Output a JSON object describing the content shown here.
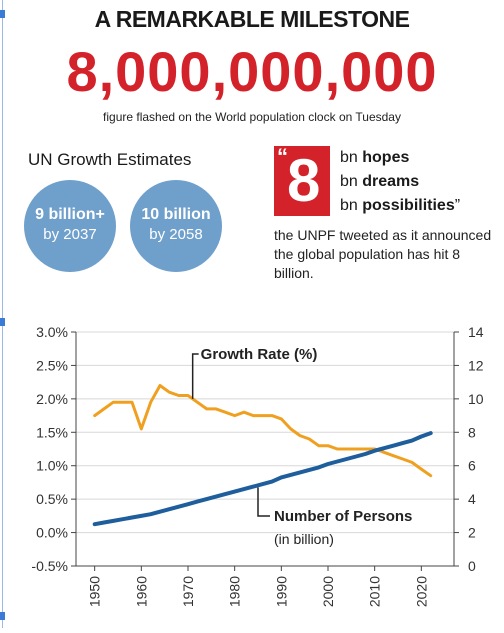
{
  "header": {
    "headline": "A REMARKABLE MILESTONE",
    "big_number": "8,000,000,000",
    "caption": "figure flashed on the World population clock on Tuesday"
  },
  "estimates": {
    "title": "UN Growth Estimates",
    "bubbles": [
      {
        "value": "9 billion+",
        "year": "by 2037"
      },
      {
        "value": "10 billion",
        "year": "by 2058"
      }
    ]
  },
  "quote": {
    "open_mark": "“",
    "number": "8",
    "lines": [
      {
        "prefix": "bn ",
        "word": "hopes",
        "suffix": ""
      },
      {
        "prefix": "bn ",
        "word": "dreams",
        "suffix": ""
      },
      {
        "prefix": "bn ",
        "word": "possibilities",
        "suffix": "”"
      }
    ],
    "attribution": "the UNPF tweeted as it announced the global population has hit 8 billion."
  },
  "colors": {
    "accent_red": "#d3222a",
    "bubble_blue": "#6f9fcb",
    "growth_orange": "#f0a020",
    "persons_blue": "#1f5e9c"
  },
  "chart_data": {
    "type": "line",
    "x": [
      1950,
      1952,
      1954,
      1956,
      1958,
      1960,
      1962,
      1964,
      1966,
      1968,
      1970,
      1972,
      1974,
      1976,
      1978,
      1980,
      1982,
      1984,
      1986,
      1988,
      1990,
      1992,
      1994,
      1996,
      1998,
      2000,
      2002,
      2004,
      2006,
      2008,
      2010,
      2012,
      2014,
      2016,
      2018,
      2020,
      2022
    ],
    "series": [
      {
        "name": "Growth Rate (%)",
        "axis": "left",
        "color": "#f0a020",
        "values": [
          1.75,
          1.85,
          1.95,
          1.95,
          1.95,
          1.55,
          1.95,
          2.2,
          2.1,
          2.05,
          2.05,
          1.95,
          1.85,
          1.85,
          1.8,
          1.75,
          1.8,
          1.75,
          1.75,
          1.75,
          1.7,
          1.55,
          1.45,
          1.4,
          1.3,
          1.3,
          1.25,
          1.25,
          1.25,
          1.25,
          1.25,
          1.2,
          1.15,
          1.1,
          1.05,
          0.95,
          0.85
        ]
      },
      {
        "name": "Number of Persons",
        "label_sub": "(in billion)",
        "axis": "right",
        "color": "#1f5e9c",
        "values": [
          2.5,
          2.6,
          2.7,
          2.8,
          2.9,
          3.0,
          3.1,
          3.25,
          3.4,
          3.55,
          3.7,
          3.85,
          4.0,
          4.15,
          4.3,
          4.45,
          4.6,
          4.75,
          4.9,
          5.05,
          5.3,
          5.45,
          5.6,
          5.75,
          5.9,
          6.1,
          6.25,
          6.4,
          6.55,
          6.7,
          6.9,
          7.05,
          7.2,
          7.35,
          7.5,
          7.75,
          7.95
        ]
      }
    ],
    "y_left": {
      "ticks": [
        "3.0%",
        "2.5%",
        "2.0%",
        "1.5%",
        "1.0%",
        "0.5%",
        "0.0%",
        "-0.5%"
      ],
      "tick_values": [
        3.0,
        2.5,
        2.0,
        1.5,
        1.0,
        0.5,
        0.0,
        -0.5
      ],
      "ylim": [
        -0.5,
        3.0
      ]
    },
    "y_right": {
      "ticks": [
        "14",
        "12",
        "10",
        "8",
        "6",
        "4",
        "2",
        "0"
      ],
      "tick_values": [
        14,
        12,
        10,
        8,
        6,
        4,
        2,
        0
      ],
      "ylim": [
        0,
        14
      ]
    },
    "x_ticks": [
      "1950",
      "1960",
      "1970",
      "1980",
      "1990",
      "2000",
      "2010",
      "2020"
    ],
    "x_tick_values": [
      1950,
      1960,
      1970,
      1980,
      1990,
      2000,
      2010,
      2020
    ],
    "xlim": [
      1946,
      2027
    ],
    "grid": "horizontal"
  }
}
